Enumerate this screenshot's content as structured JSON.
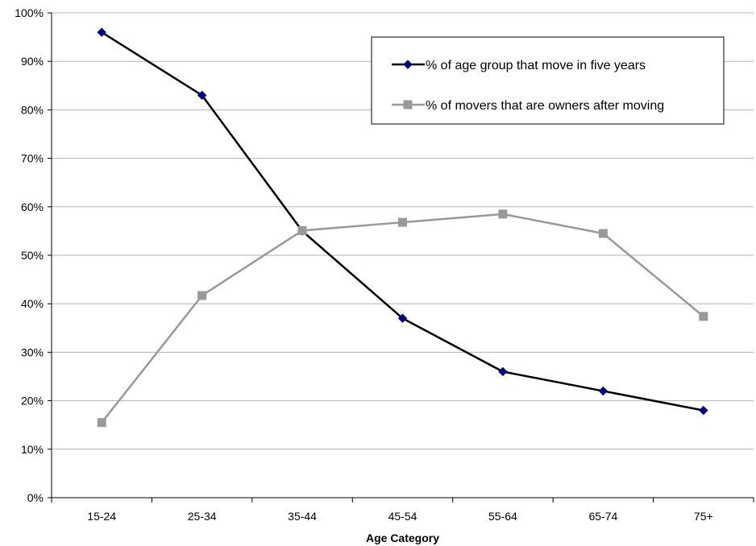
{
  "chart_data": {
    "type": "line",
    "title": "",
    "xlabel": "Age Category",
    "ylabel": "",
    "categories": [
      "15-24",
      "25-34",
      "35-44",
      "45-54",
      "55-64",
      "65-74",
      "75+"
    ],
    "ylim": [
      0,
      100
    ],
    "yticks": [
      "0%",
      "10%",
      "20%",
      "30%",
      "40%",
      "50%",
      "60%",
      "70%",
      "80%",
      "90%",
      "100%"
    ],
    "grid": "horizontal",
    "legend_position": "top-right",
    "series": [
      {
        "name": "% of age group that move in five years",
        "values": [
          96,
          83,
          55,
          37,
          26,
          22,
          18
        ],
        "color": "#000000",
        "marker_color": "#000080",
        "marker": "diamond"
      },
      {
        "name": "% of movers that are owners after moving",
        "values": [
          15.5,
          41.7,
          55.1,
          56.8,
          58.5,
          54.5,
          37.4
        ],
        "color": "#999999",
        "marker_color": "#999999",
        "marker": "square"
      }
    ]
  }
}
